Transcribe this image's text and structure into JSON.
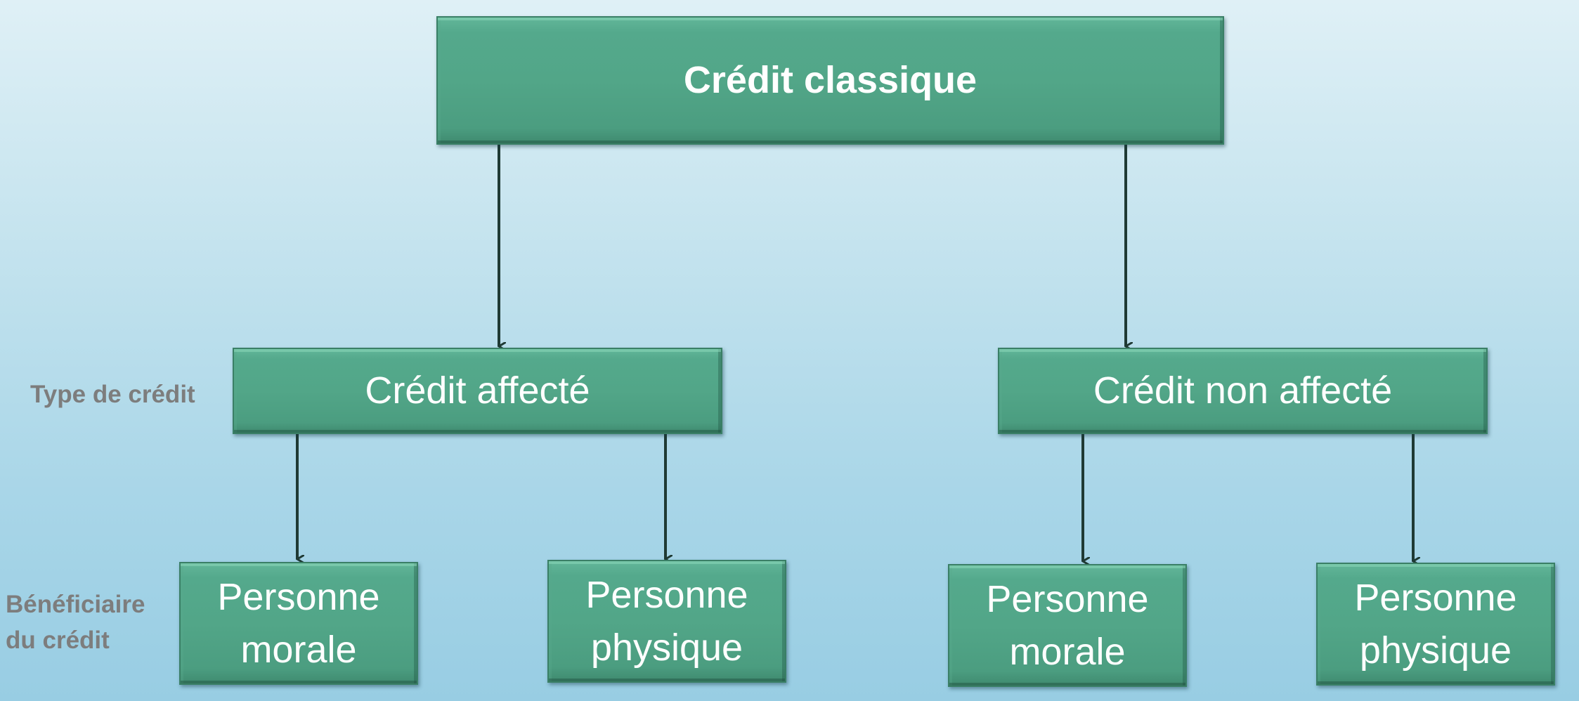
{
  "diagram": {
    "root": {
      "label": "Crédit classique"
    },
    "levels": [
      {
        "label": "Type de crédit"
      },
      {
        "label": "Bénéficiaire\ndu crédit"
      }
    ],
    "nodes": [
      {
        "label": "Crédit affecté",
        "children": [
          {
            "label": "Personne\nmorale"
          },
          {
            "label": "Personne\nphysique"
          }
        ]
      },
      {
        "label": "Crédit non affecté",
        "children": [
          {
            "label": "Personne\nmorale"
          },
          {
            "label": "Personne\nphysique"
          }
        ]
      }
    ],
    "colors": {
      "node_fill": "#52a688",
      "node_text": "#ffffff",
      "connector": "#1f3a34",
      "side_label": "#7d7d7d"
    }
  }
}
